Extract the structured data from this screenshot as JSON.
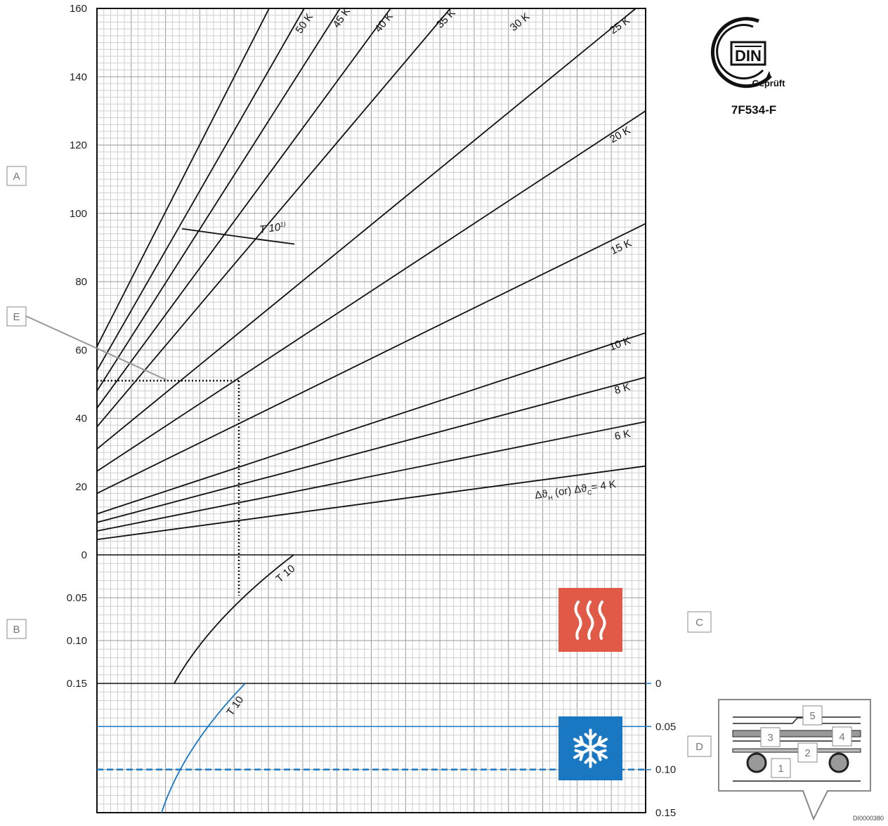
{
  "badge": {
    "din_text": "DIN",
    "geprueft": "Geprüft",
    "code": "7F534-F"
  },
  "callouts": {
    "A": "A",
    "B": "B",
    "C": "C",
    "D": "D",
    "E": "E"
  },
  "detail_labels": [
    "5",
    "3",
    "4",
    "2",
    "1"
  ],
  "image_id_text": "DI0000380",
  "colors": {
    "cool_blue": "#1a78c2",
    "heat_red": "#e05a47",
    "grid": "#cfcfcf",
    "line": "#111111"
  },
  "icons": {
    "heating": "heating-waves-icon",
    "cooling": "snowflake-icon"
  },
  "chart_data": [
    {
      "type": "line",
      "ylim": [
        0,
        160
      ],
      "yticks": [
        "0",
        "20",
        "40",
        "60",
        "80",
        "100",
        "120",
        "140",
        "160"
      ],
      "grid": true,
      "series": [
        {
          "name": "50 K",
          "start_y": 61,
          "end_y": 160
        },
        {
          "name": "45 K",
          "start_y": 54,
          "end_y": 160
        },
        {
          "name": "40 K",
          "start_y": 48,
          "end_y": 160
        },
        {
          "name": "35 K",
          "start_y": 43,
          "end_y": 160
        },
        {
          "name": "30 K",
          "start_y": 37.5,
          "end_y": 160
        },
        {
          "name": "25 K",
          "start_y": 31,
          "end_y": 160
        },
        {
          "name": "20 K",
          "start_y": 24.5,
          "end_y": 130
        },
        {
          "name": "15 K",
          "start_y": 18,
          "end_y": 97
        },
        {
          "name": "10 K",
          "start_y": 12,
          "end_y": 65
        },
        {
          "name": "8 K",
          "start_y": 9.5,
          "end_y": 52
        },
        {
          "name": "6 K",
          "start_y": 7,
          "end_y": 39
        },
        {
          "name": "Δϑ_H (or) Δϑ_C = 4 K",
          "start_y": 4.5,
          "end_y": 26
        }
      ],
      "line_label_parts": [
        "Δϑ",
        "H",
        " (or) Δϑ",
        "C",
        "= 4 K"
      ],
      "t10_curve": {
        "label": "T 10",
        "superscript": "1)",
        "points": [
          [
            0.155,
            95.5
          ],
          [
            0.26,
            92.5
          ],
          [
            0.36,
            91
          ]
        ]
      },
      "example_line_y": 51
    },
    {
      "type": "line",
      "yticks": [
        "0",
        "0.05",
        "0.10",
        "0.15"
      ],
      "ylim": [
        0,
        0.15
      ],
      "t10_curve": {
        "label": "T 10",
        "points": [
          [
            0.14,
            0.15
          ],
          [
            0.2,
            0.1
          ],
          [
            0.26,
            0.046
          ],
          [
            0.36,
            0
          ]
        ]
      },
      "grid": true
    },
    {
      "type": "line",
      "yticks": [
        "0",
        "0.05",
        "0.10",
        "0.15"
      ],
      "ylim": [
        0,
        0.15
      ],
      "t10_curve": {
        "label": "T 10",
        "points": [
          [
            0.275,
            0
          ],
          [
            0.2,
            0.05
          ],
          [
            0.12,
            0.1
          ],
          [
            0.11,
            0.15
          ]
        ]
      },
      "solid_line_y": 0.05,
      "dashed_line_y": 0.1,
      "grid": true
    }
  ]
}
